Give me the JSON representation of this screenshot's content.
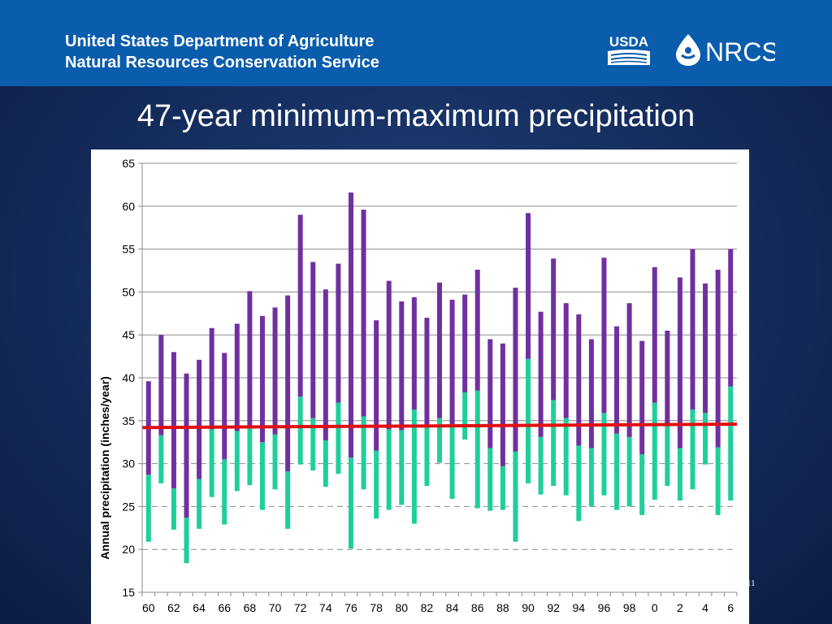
{
  "header": {
    "org_line1": "United States Department of Agriculture",
    "org_line2": "Natural Resources Conservation Service",
    "usda_logo_text": "USDA",
    "nrcs_logo_text": "NRCS"
  },
  "slide": {
    "title": "47-year minimum-maximum precipitation",
    "page_number": "11"
  },
  "colors": {
    "header_bg": "#0a5cad",
    "max_segment": "#7030a0",
    "min_segment": "#1fcf9b",
    "mean_line": "#e01010"
  },
  "chart_data": {
    "type": "bar",
    "title": "",
    "xlabel": "",
    "ylabel": "Annual precipitation (inches/year)",
    "ylim": [
      15,
      65
    ],
    "yticks": [
      "15",
      "20",
      "25",
      "30",
      "35",
      "40",
      "45",
      "50",
      "55",
      "60",
      "65"
    ],
    "x": [
      1960,
      1961,
      1962,
      1963,
      1964,
      1965,
      1966,
      1967,
      1968,
      1969,
      1970,
      1971,
      1972,
      1973,
      1974,
      1975,
      1976,
      1977,
      1978,
      1979,
      1980,
      1981,
      1982,
      1983,
      1984,
      1985,
      1986,
      1987,
      1988,
      1989,
      1990,
      1991,
      1992,
      1993,
      1994,
      1995,
      1996,
      1997,
      1998,
      1999,
      2000,
      2001,
      2002,
      2003,
      2004,
      2005,
      2006
    ],
    "xtick_labels": [
      "60",
      "62",
      "64",
      "66",
      "68",
      "70",
      "72",
      "74",
      "76",
      "78",
      "80",
      "82",
      "84",
      "86",
      "88",
      "90",
      "92",
      "94",
      "96",
      "98",
      "0",
      "2",
      "4",
      "6"
    ],
    "series": [
      {
        "values_low": [
          20.9,
          27.7,
          22.3,
          18.4,
          22.4,
          26.1,
          22.9,
          26.8,
          27.5,
          24.6,
          27.0,
          22.4,
          29.9,
          29.2,
          27.3,
          28.8,
          20.1,
          27.0,
          23.6,
          24.6,
          25.2,
          23.0,
          27.4,
          30.1,
          25.9,
          32.8,
          24.8,
          24.5,
          24.6,
          20.9,
          27.7,
          26.4,
          27.4,
          26.3,
          23.3,
          25.0,
          26.3,
          24.6,
          25.0,
          24.0,
          25.8,
          27.4,
          25.7,
          27.0,
          29.9,
          24.0,
          25.7
        ],
        "values_mid": [
          28.7,
          33.3,
          27.1,
          23.7,
          28.2,
          34.0,
          30.5,
          33.8,
          34.2,
          32.5,
          33.4,
          29.1,
          37.8,
          35.3,
          32.7,
          37.1,
          30.7,
          35.5,
          31.5,
          34.0,
          33.9,
          36.3,
          34.2,
          35.3,
          34.5,
          38.3,
          38.5,
          31.8,
          29.7,
          31.4,
          42.2,
          33.1,
          37.4,
          35.3,
          32.1,
          31.8,
          35.9,
          33.5,
          33.1,
          31.1,
          37.1,
          34.6,
          31.8,
          36.3,
          35.9,
          31.9,
          39.0
        ],
        "values_high": [
          39.6,
          45.0,
          43.0,
          40.5,
          42.1,
          45.8,
          42.9,
          46.3,
          50.1,
          47.2,
          48.2,
          49.6,
          59.0,
          53.5,
          50.3,
          53.3,
          61.6,
          59.6,
          46.7,
          51.3,
          48.9,
          49.4,
          47.0,
          51.1,
          49.1,
          49.7,
          52.6,
          44.5,
          44.0,
          50.5,
          59.2,
          47.7,
          53.9,
          48.7,
          47.4,
          44.5,
          54.0,
          46.0,
          48.7,
          44.3,
          52.9,
          45.5,
          51.7,
          55.0,
          51.0,
          52.6,
          55.0
        ]
      }
    ],
    "mean_line": {
      "start": 34.2,
      "end": 34.6
    },
    "grid": "horizontal dashed",
    "legend": "none"
  }
}
